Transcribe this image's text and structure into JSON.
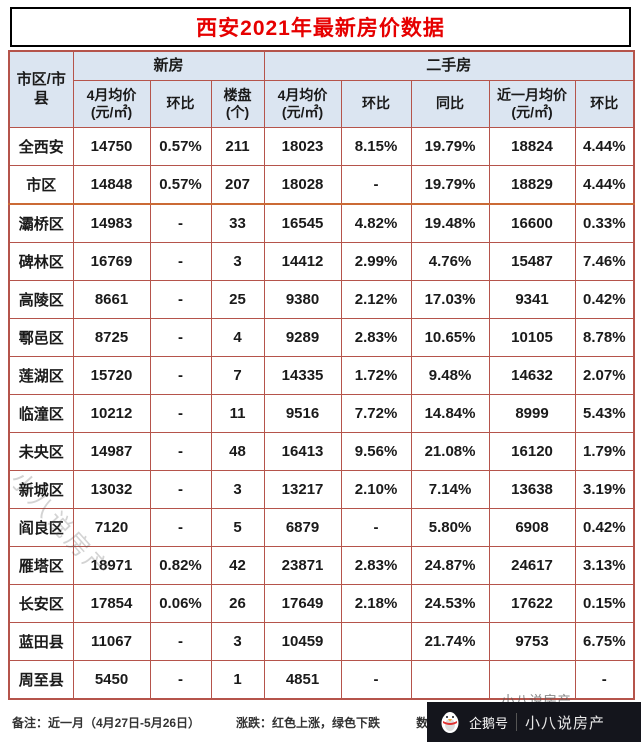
{
  "title": "西安2021年最新房价数据",
  "colors": {
    "title": "#e60000",
    "border": "#b5544b",
    "header_bg": "#dbe5f1",
    "up": "#f40000",
    "down": "#00b050"
  },
  "chart_data": {
    "type": "table",
    "title": "西安2021年最新房价数据",
    "corner_header": "市区/市县",
    "column_groups": [
      {
        "label": "新房",
        "span": 3
      },
      {
        "label": "二手房",
        "span": 5
      }
    ],
    "columns": [
      "4月均价(元/㎡)",
      "环比",
      "楼盘(个)",
      "4月均价(元/㎡)",
      "环比",
      "同比",
      "近一月均价(元/㎡)",
      "环比"
    ],
    "rows": [
      {
        "name": "全西安",
        "cells": [
          {
            "v": "14750"
          },
          {
            "v": "0.57%",
            "c": "down"
          },
          {
            "v": "211"
          },
          {
            "v": "18023"
          },
          {
            "v": "8.15%",
            "c": "up"
          },
          {
            "v": "19.79%",
            "c": "up"
          },
          {
            "v": "18824"
          },
          {
            "v": "4.44%",
            "c": "up"
          }
        ]
      },
      {
        "name": "市区",
        "sep": true,
        "cells": [
          {
            "v": "14848"
          },
          {
            "v": "0.57%",
            "c": "down"
          },
          {
            "v": "207"
          },
          {
            "v": "18028"
          },
          {
            "v": "-"
          },
          {
            "v": "19.79%",
            "c": "up"
          },
          {
            "v": "18829"
          },
          {
            "v": "4.44%",
            "c": "up"
          }
        ]
      },
      {
        "name": "灞桥区",
        "cells": [
          {
            "v": "14983"
          },
          {
            "v": "-"
          },
          {
            "v": "33"
          },
          {
            "v": "16545"
          },
          {
            "v": "4.82%",
            "c": "up"
          },
          {
            "v": "19.48%",
            "c": "up"
          },
          {
            "v": "16600"
          },
          {
            "v": "0.33%",
            "c": "up"
          }
        ]
      },
      {
        "name": "碑林区",
        "cells": [
          {
            "v": "16769"
          },
          {
            "v": "-"
          },
          {
            "v": "3"
          },
          {
            "v": "14412"
          },
          {
            "v": "2.99%",
            "c": "up"
          },
          {
            "v": "4.76%",
            "c": "up"
          },
          {
            "v": "15487"
          },
          {
            "v": "7.46%",
            "c": "up"
          }
        ]
      },
      {
        "name": "高陵区",
        "cells": [
          {
            "v": "8661"
          },
          {
            "v": "-"
          },
          {
            "v": "25"
          },
          {
            "v": "9380"
          },
          {
            "v": "2.12%",
            "c": "up"
          },
          {
            "v": "17.03%",
            "c": "up"
          },
          {
            "v": "9341"
          },
          {
            "v": "0.42%",
            "c": "down"
          }
        ]
      },
      {
        "name": "鄠邑区",
        "cells": [
          {
            "v": "8725"
          },
          {
            "v": "-"
          },
          {
            "v": "4"
          },
          {
            "v": "9289"
          },
          {
            "v": "2.83%",
            "c": "down"
          },
          {
            "v": "10.65%",
            "c": "up"
          },
          {
            "v": "10105"
          },
          {
            "v": "8.78%",
            "c": "up"
          }
        ]
      },
      {
        "name": "莲湖区",
        "cells": [
          {
            "v": "15720"
          },
          {
            "v": "-"
          },
          {
            "v": "7"
          },
          {
            "v": "14335"
          },
          {
            "v": "1.72%",
            "c": "up"
          },
          {
            "v": "9.48%",
            "c": "up"
          },
          {
            "v": "14632"
          },
          {
            "v": "2.07%",
            "c": "up"
          }
        ]
      },
      {
        "name": "临潼区",
        "cells": [
          {
            "v": "10212"
          },
          {
            "v": "-"
          },
          {
            "v": "11"
          },
          {
            "v": "9516"
          },
          {
            "v": "7.72%",
            "c": "up"
          },
          {
            "v": "14.84%",
            "c": "up"
          },
          {
            "v": "8999"
          },
          {
            "v": "5.43%",
            "c": "down"
          }
        ]
      },
      {
        "name": "未央区",
        "cells": [
          {
            "v": "14987"
          },
          {
            "v": "-"
          },
          {
            "v": "48"
          },
          {
            "v": "16413"
          },
          {
            "v": "9.56%",
            "c": "up"
          },
          {
            "v": "21.08%",
            "c": "up"
          },
          {
            "v": "16120"
          },
          {
            "v": "1.79%",
            "c": "down"
          }
        ]
      },
      {
        "name": "新城区",
        "cells": [
          {
            "v": "13032"
          },
          {
            "v": "-"
          },
          {
            "v": "3"
          },
          {
            "v": "13217"
          },
          {
            "v": "2.10%",
            "c": "up"
          },
          {
            "v": "7.14%",
            "c": "up"
          },
          {
            "v": "13638"
          },
          {
            "v": "3.19%",
            "c": "up"
          }
        ]
      },
      {
        "name": "阎良区",
        "cells": [
          {
            "v": "7120"
          },
          {
            "v": "-"
          },
          {
            "v": "5"
          },
          {
            "v": "6879"
          },
          {
            "v": "-"
          },
          {
            "v": "5.80%",
            "c": "up"
          },
          {
            "v": "6908"
          },
          {
            "v": "0.42%",
            "c": "up"
          }
        ]
      },
      {
        "name": "雁塔区",
        "cells": [
          {
            "v": "18971"
          },
          {
            "v": "0.82%",
            "c": "down"
          },
          {
            "v": "42"
          },
          {
            "v": "23871"
          },
          {
            "v": "2.83%",
            "c": "up"
          },
          {
            "v": "24.87%",
            "c": "up"
          },
          {
            "v": "24617"
          },
          {
            "v": "3.13%",
            "c": "up"
          }
        ]
      },
      {
        "name": "长安区",
        "cells": [
          {
            "v": "17854"
          },
          {
            "v": "0.06%",
            "c": "up"
          },
          {
            "v": "26"
          },
          {
            "v": "17649"
          },
          {
            "v": "2.18%",
            "c": "up"
          },
          {
            "v": "24.53%",
            "c": "up"
          },
          {
            "v": "17622"
          },
          {
            "v": "0.15%",
            "c": "down"
          }
        ]
      },
      {
        "name": "蓝田县",
        "cells": [
          {
            "v": "11067"
          },
          {
            "v": "-"
          },
          {
            "v": "3"
          },
          {
            "v": "10459"
          },
          {
            "v": ""
          },
          {
            "v": "21.74%",
            "c": "up"
          },
          {
            "v": "9753"
          },
          {
            "v": "6.75%",
            "c": "down"
          }
        ]
      },
      {
        "name": "周至县",
        "cells": [
          {
            "v": "5450"
          },
          {
            "v": "-"
          },
          {
            "v": "1"
          },
          {
            "v": "4851"
          },
          {
            "v": "-"
          },
          {
            "v": ""
          },
          {
            "v": ""
          },
          {
            "v": "-"
          }
        ]
      }
    ]
  },
  "footer": {
    "note": "备注：近一月（4月27日-5月26日）",
    "legend": "涨跌：红色上涨，绿色下跌",
    "source": "数据来源：中国房价行情"
  },
  "watermarks": {
    "diagonal": "小八说房产",
    "small": "小八说房产",
    "badge_platform": "企鹅号",
    "badge_account": "小八说房产"
  }
}
